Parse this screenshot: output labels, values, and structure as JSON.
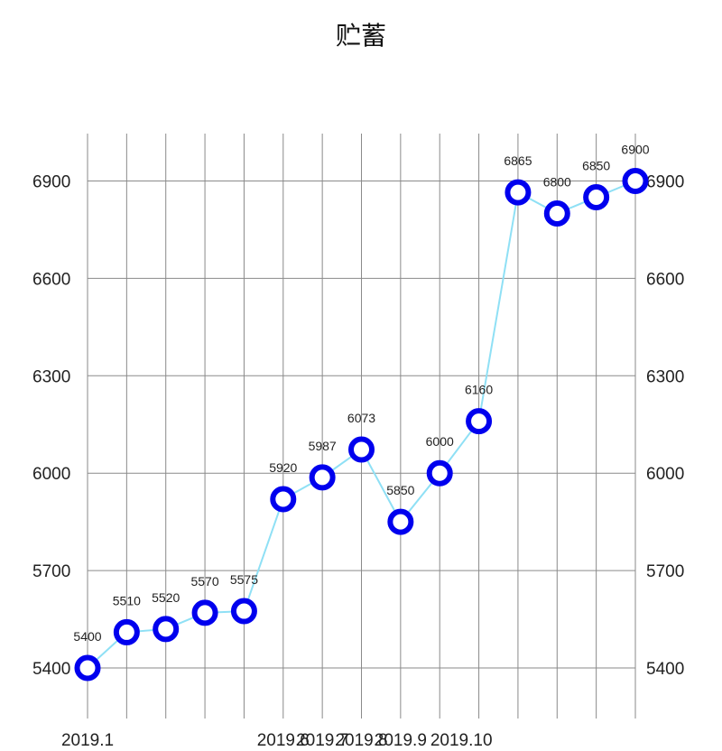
{
  "chart_data": {
    "type": "line",
    "title": "贮蓄",
    "x_tick_labels": [
      "2019.1",
      "2019.6",
      "2019.7",
      "2019.8",
      "2019.9",
      "2019.10"
    ],
    "y_ticks": [
      5400,
      5700,
      6000,
      6300,
      6600,
      6900
    ],
    "ylim": [
      5250,
      7050
    ],
    "grid": true,
    "series": [
      {
        "values": [
          5400,
          5510,
          5520,
          5570,
          5575,
          5920,
          5987,
          6073,
          5850,
          6000,
          6160,
          6865,
          6800,
          6850,
          6900
        ]
      }
    ],
    "data_labels": [
      "5400",
      "5510",
      "5520",
      "5570",
      "5575",
      "5920",
      "5987",
      "6073",
      "5850",
      "6000",
      "6160",
      "6865",
      "6800",
      "6850",
      "6900"
    ],
    "line_color": "#8fe0f5",
    "marker_color": "#0000ee"
  }
}
